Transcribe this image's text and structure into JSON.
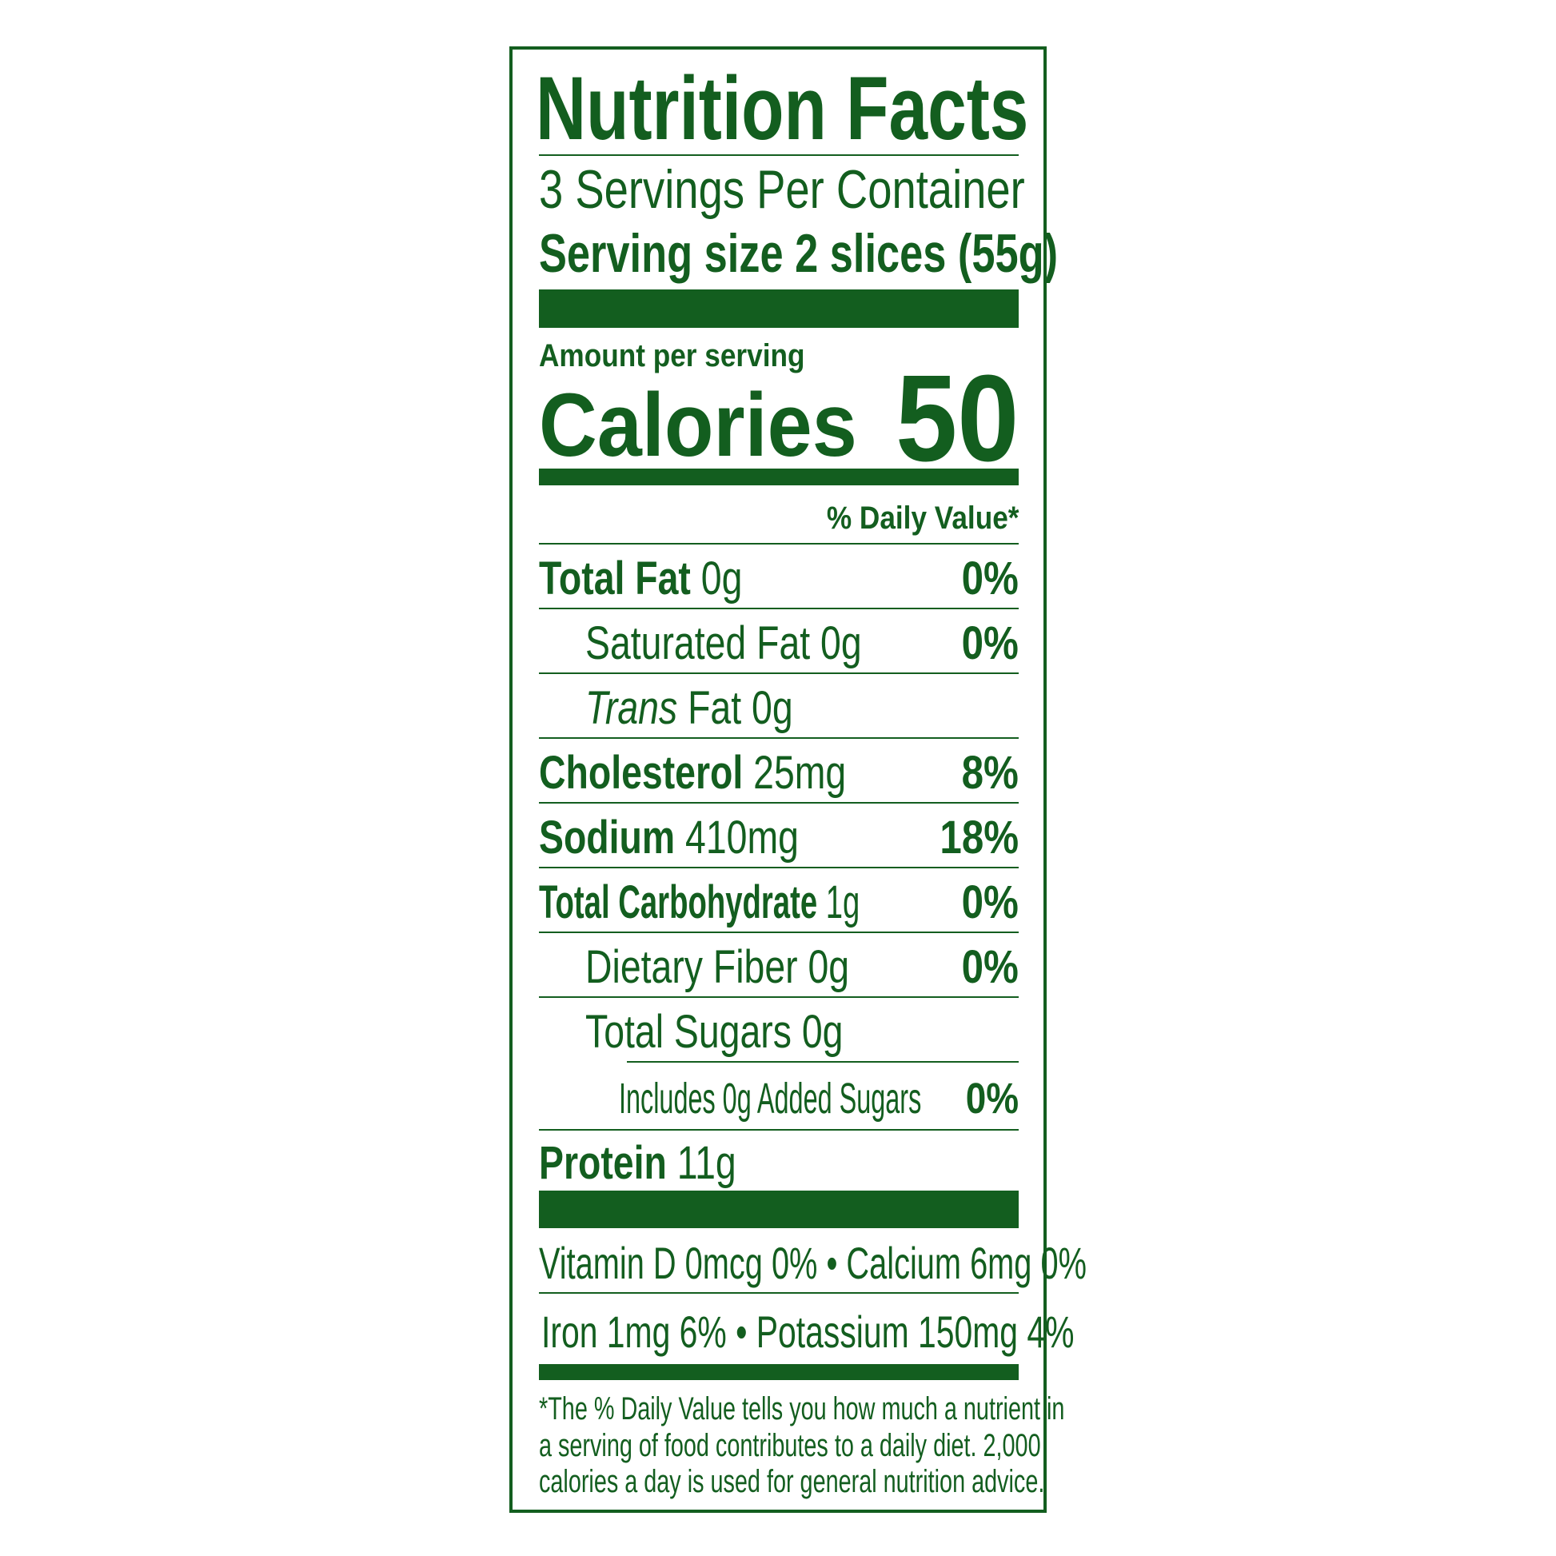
{
  "title": "Nutrition Facts",
  "servings_per_container": "3 Servings Per Container",
  "serving_size_label": "Serving size",
  "serving_size_value": "2 slices (55g)",
  "amount_per_serving": "Amount per serving",
  "calories_label": "Calories",
  "calories_value": "50",
  "daily_value_header": "% Daily Value*",
  "nutrients": [
    {
      "name": "Total Fat",
      "amount": "0g",
      "dv": "0%"
    },
    {
      "name": "Saturated Fat",
      "amount": "0g",
      "dv": "0%"
    },
    {
      "name": "Trans",
      "name_rest": "Fat",
      "amount": "0g",
      "dv": ""
    },
    {
      "name": "Cholesterol",
      "amount": "25mg",
      "dv": "8%"
    },
    {
      "name": "Sodium",
      "amount": "410mg",
      "dv": "18%"
    },
    {
      "name": "Total Carbohydrate",
      "amount": "1g",
      "dv": "0%"
    },
    {
      "name": "Dietary Fiber",
      "amount": "0g",
      "dv": "0%"
    },
    {
      "name": "Total Sugars",
      "amount": "0g",
      "dv": ""
    },
    {
      "name": "Includes 0g Added Sugars",
      "amount": "",
      "dv": "0%"
    },
    {
      "name": "Protein",
      "amount": "11g",
      "dv": ""
    }
  ],
  "vitamins_line1": "Vitamin D 0mcg 0% • Calcium 6mg 0%",
  "vitamins_line2": "Iron 1mg 6% • Potassium 150mg  4%",
  "footnote": [
    "*The % Daily Value tells you how much a nutrient in",
    "a serving of food contributes to a daily diet. 2,000",
    "calories a day is used for general nutrition advice."
  ],
  "colors": {
    "label_green": "#135e1f",
    "background": "#ffffff"
  }
}
